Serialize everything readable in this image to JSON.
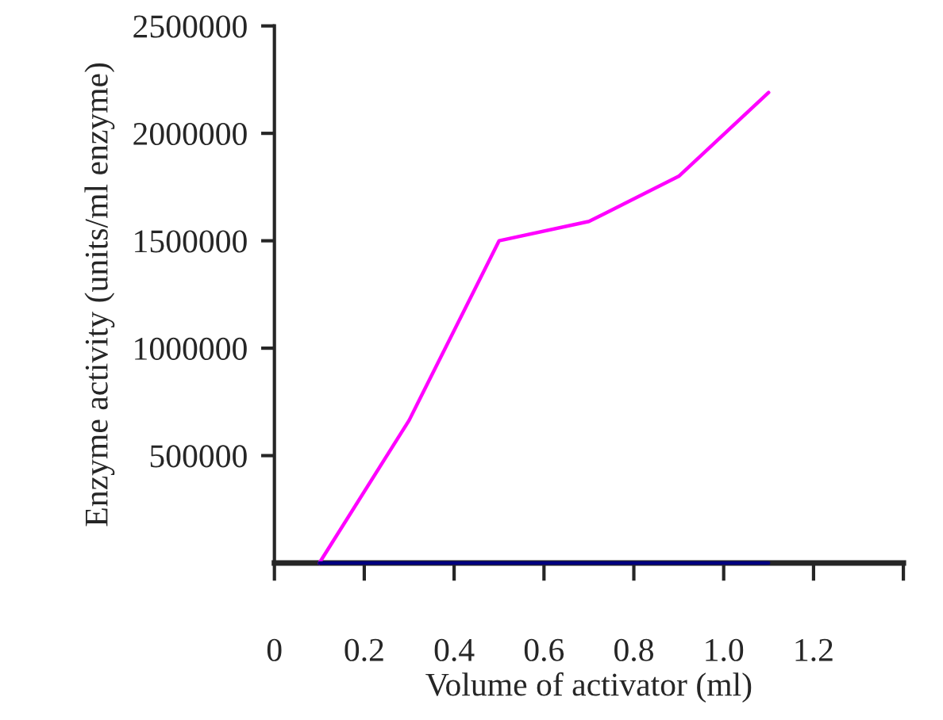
{
  "chart_data": {
    "type": "line",
    "xlabel": "Volume of activator (ml)",
    "ylabel": "Enzyme activity (units/ml enzyme)",
    "xlim": [
      0,
      1.4
    ],
    "xticks": [
      0,
      {
        "value": 0.2,
        "label": "0.2"
      },
      {
        "value": 0.4,
        "label": "0.4"
      },
      {
        "value": 0.6,
        "label": "0.6"
      },
      {
        "value": 0.8,
        "label": "0.8"
      },
      {
        "value": 1.0,
        "label": "1.0"
      },
      {
        "value": 1.2,
        "label": "1.2"
      },
      {
        "value": 1.4,
        "label": null
      }
    ],
    "ylim": [
      0,
      2500000
    ],
    "yticks": [
      500000,
      1000000,
      1500000,
      2000000,
      2500000
    ],
    "x": [
      0.1,
      0.3,
      0.5,
      0.7,
      0.9,
      1.1
    ],
    "series": [
      {
        "color": "#ff00ff",
        "values": [
          0,
          665000,
          1500000,
          1590000,
          1800000,
          2190000
        ]
      },
      {
        "color": "#000080",
        "values": [
          0,
          0,
          0,
          0,
          0,
          0
        ]
      }
    ],
    "grid": false,
    "legend": false,
    "marker": "none",
    "line_style": "solid"
  }
}
